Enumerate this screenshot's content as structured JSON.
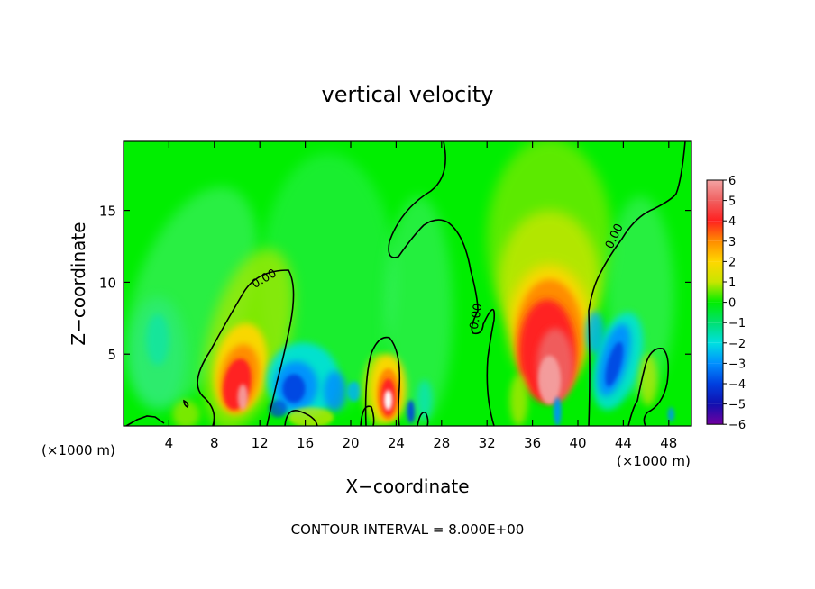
{
  "chart_data": {
    "type": "heatmap",
    "title": "vertical velocity",
    "xlabel": "X−coordinate",
    "ylabel": "Z−coordinate",
    "x_unit_left": "(×1000 m)",
    "x_unit_right": "(×1000 m)",
    "footer": "CONTOUR INTERVAL = 8.000E+00",
    "xlim": [
      0,
      50
    ],
    "ylim": [
      0,
      19.8
    ],
    "x_ticks": [
      4,
      8,
      12,
      16,
      20,
      24,
      28,
      32,
      36,
      40,
      44,
      48
    ],
    "y_ticks": [
      5,
      10,
      15
    ],
    "contour_label": "0.00",
    "colorbar": {
      "levels": [
        6,
        5,
        4,
        3,
        2,
        1,
        0,
        -1,
        -2,
        -3,
        -4,
        -5,
        -6
      ],
      "level_labels": [
        "6",
        "5",
        "4",
        "3",
        "2",
        "1",
        "0",
        "−1",
        "−2",
        "−3",
        "−4",
        "−5",
        "−6"
      ],
      "colors": [
        "#f4a3a3",
        "#f06060",
        "#ff2020",
        "#ff8c00",
        "#ffd700",
        "#c8e600",
        "#00ee00",
        "#00e070",
        "#00e0e0",
        "#0090ff",
        "#0040e0",
        "#1010b0",
        "#7000a0"
      ]
    },
    "features": [
      {
        "type": "updraft",
        "x": 10,
        "z": 2.8,
        "peak": 5
      },
      {
        "type": "updraft",
        "x": 23.2,
        "z": 2.0,
        "peak": 6
      },
      {
        "type": "updraft",
        "x": 37.5,
        "z": 5.0,
        "peak": 5.5
      },
      {
        "type": "downdraft",
        "x": 15.5,
        "z": 3.0,
        "peak": -3
      },
      {
        "type": "downdraft",
        "x": 43.5,
        "z": 4.5,
        "peak": -3.5
      }
    ]
  }
}
